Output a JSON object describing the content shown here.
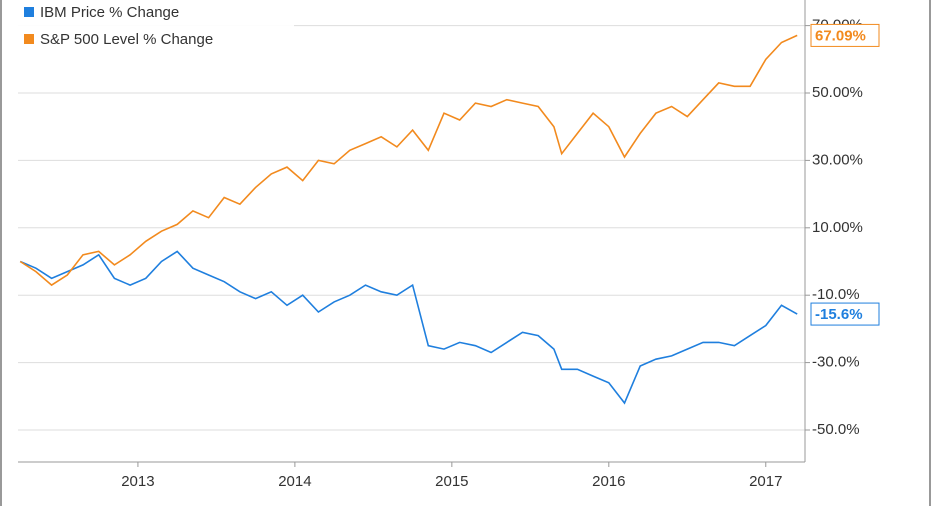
{
  "chart_data": {
    "type": "line",
    "x": [
      2012.25,
      2012.35,
      2012.45,
      2012.55,
      2012.65,
      2012.75,
      2012.85,
      2012.95,
      2013.05,
      2013.15,
      2013.25,
      2013.35,
      2013.45,
      2013.55,
      2013.65,
      2013.75,
      2013.85,
      2013.95,
      2014.05,
      2014.15,
      2014.25,
      2014.35,
      2014.45,
      2014.55,
      2014.65,
      2014.75,
      2014.85,
      2014.95,
      2015.05,
      2015.15,
      2015.25,
      2015.35,
      2015.45,
      2015.55,
      2015.65,
      2015.7,
      2015.8,
      2015.9,
      2016.0,
      2016.1,
      2016.2,
      2016.3,
      2016.4,
      2016.5,
      2016.6,
      2016.7,
      2016.8,
      2016.9,
      2017.0,
      2017.1,
      2017.2
    ],
    "series": [
      {
        "name": "IBM Price % Change",
        "color": "#1f7fde",
        "values": [
          0,
          -2,
          -5,
          -3,
          -1,
          2,
          -5,
          -7,
          -5,
          0,
          3,
          -2,
          -4,
          -6,
          -9,
          -11,
          -9,
          -13,
          -10,
          -15,
          -12,
          -10,
          -7,
          -9,
          -10,
          -7,
          -25,
          -26,
          -24,
          -25,
          -27,
          -24,
          -21,
          -22,
          -26,
          -32,
          -32,
          -34,
          -36,
          -42,
          -31,
          -29,
          -28,
          -26,
          -24,
          -24,
          -25,
          -22,
          -19,
          -13,
          -15.6
        ],
        "end_label": "-15.6%"
      },
      {
        "name": "S&P 500 Level % Change",
        "color": "#f28a1e",
        "values": [
          0,
          -3,
          -7,
          -4,
          2,
          3,
          -1,
          2,
          6,
          9,
          11,
          15,
          13,
          19,
          17,
          22,
          26,
          28,
          24,
          30,
          29,
          33,
          35,
          37,
          34,
          39,
          33,
          44,
          42,
          47,
          46,
          48,
          47,
          46,
          40,
          32,
          38,
          44,
          40,
          31,
          38,
          44,
          46,
          43,
          48,
          53,
          52,
          52,
          60,
          65,
          67.09
        ],
        "end_label": "67.09%"
      }
    ],
    "xlim": [
      2012.236,
      2017.25
    ],
    "xticks": [
      2013,
      2014,
      2015,
      2016,
      2017
    ],
    "ylim": [
      -59.5,
      77.6
    ],
    "yticks": [
      {
        "value": -50,
        "label": "-50.0%"
      },
      {
        "value": -30,
        "label": "-30.0%"
      },
      {
        "value": -10,
        "label": "-10.0%"
      },
      {
        "value": 10,
        "label": "10.00%"
      },
      {
        "value": 30,
        "label": "30.00%"
      },
      {
        "value": 50,
        "label": "50.00%"
      },
      {
        "value": 70,
        "label": "70.00%"
      }
    ],
    "grid": true
  }
}
